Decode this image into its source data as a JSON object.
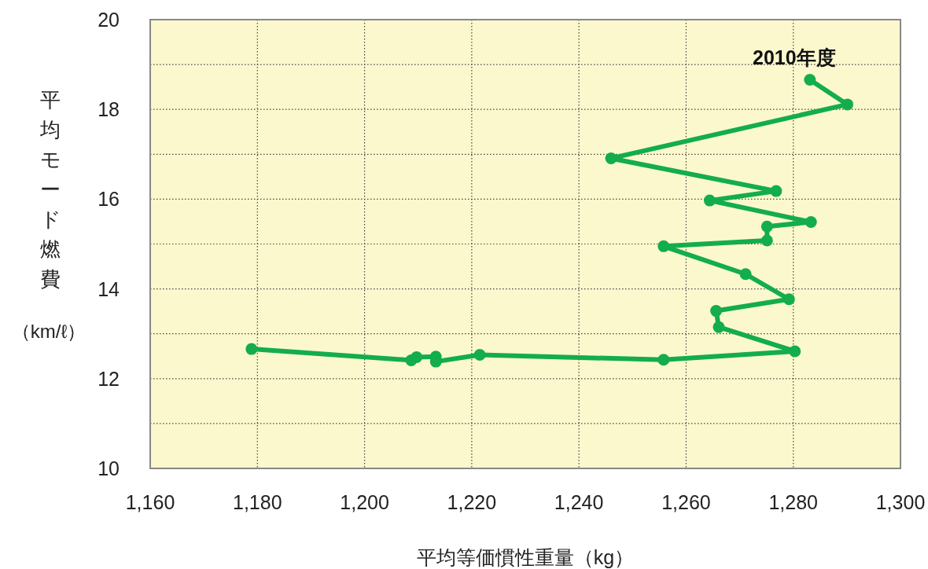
{
  "chart_data": {
    "type": "line",
    "xlabel": "平均等価慣性重量（kg）",
    "ylabel": "平均モード燃費（km/ℓ）",
    "x": [
      1178.9,
      1208.7,
      1209.7,
      1213.3,
      1213.3,
      1221.5,
      1255.8,
      1280.3,
      1266.1,
      1265.6,
      1279.2,
      1271.1,
      1255.8,
      1275.1,
      1275.1,
      1283.3,
      1264.4,
      1276.8,
      1246.0,
      1290.1,
      1283.1
    ],
    "series": [
      {
        "color": "#13ad4c",
        "values": [
          12.66,
          12.41,
          12.48,
          12.49,
          12.38,
          12.53,
          12.42,
          12.61,
          13.15,
          13.51,
          13.77,
          14.33,
          14.95,
          15.08,
          15.39,
          15.49,
          15.97,
          16.18,
          16.91,
          18.11,
          18.66
        ]
      }
    ],
    "xlim": [
      1160,
      1300
    ],
    "ylim": [
      10,
      20
    ],
    "xticks": [
      {
        "value": 1160,
        "label": "1,160"
      },
      {
        "value": 1180,
        "label": "1,180"
      },
      {
        "value": 1200,
        "label": "1,200"
      },
      {
        "value": 1220,
        "label": "1,220"
      },
      {
        "value": 1240,
        "label": "1,240"
      },
      {
        "value": 1260,
        "label": "1,260"
      },
      {
        "value": 1280,
        "label": "1,280"
      },
      {
        "value": 1300,
        "label": "1,300"
      }
    ],
    "yticks": [
      10,
      {
        "value": 11,
        "label": null
      },
      12,
      {
        "value": 13,
        "label": null
      },
      14,
      {
        "value": 15,
        "label": null
      },
      16,
      {
        "value": 17,
        "label": null
      },
      18,
      {
        "value": 19,
        "label": null
      },
      20
    ],
    "grid": true,
    "marker": "circle",
    "line_style": "solid",
    "annotations": [
      {
        "text": "2010年度",
        "x": 1283.1,
        "y": 18.66
      }
    ]
  }
}
